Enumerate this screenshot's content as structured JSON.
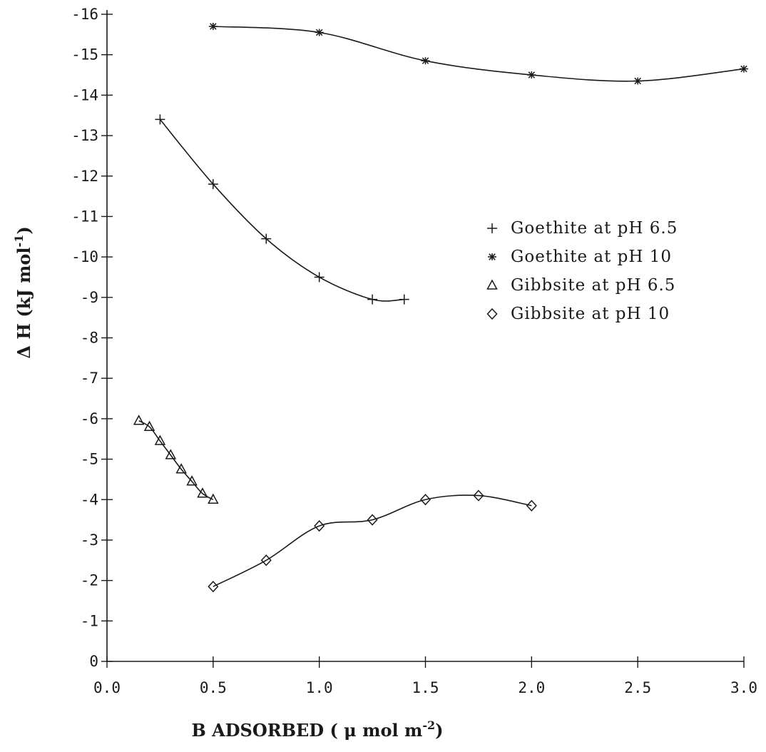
{
  "chart_data": {
    "type": "line",
    "title": "",
    "xlabel": "B ADSORBED ( μ mol m",
    "xlabel_sup": "-2",
    "xlabel_end": ")",
    "ylabel": "Δ H (kJ mol",
    "ylabel_sup": "-1",
    "ylabel_end": ")",
    "xlim": [
      0.0,
      3.0
    ],
    "ylim": [
      0,
      -16
    ],
    "x_ticks": [
      "0.0",
      "0.5",
      "1.0",
      "1.5",
      "2.0",
      "2.5",
      "3.0"
    ],
    "y_ticks": [
      "0",
      "-1",
      "-2",
      "-3",
      "-4",
      "-5",
      "-6",
      "-7",
      "-8",
      "-9",
      "-10",
      "-11",
      "-12",
      "-13",
      "-14",
      "-15",
      "-16"
    ],
    "legend_position": "right",
    "series": [
      {
        "name": "Goethite at pH 6.5",
        "marker": "plus",
        "x": [
          0.25,
          0.5,
          0.75,
          1.0,
          1.25,
          1.4
        ],
        "y": [
          -13.4,
          -11.8,
          -10.45,
          -9.5,
          -8.95,
          -8.95
        ]
      },
      {
        "name": "Goethite at pH 10",
        "marker": "asterisk",
        "x": [
          0.5,
          1.0,
          1.5,
          2.0,
          2.5,
          3.0
        ],
        "y": [
          -15.7,
          -15.55,
          -14.85,
          -14.5,
          -14.35,
          -14.65
        ]
      },
      {
        "name": "Gibbsite at pH 6.5",
        "marker": "triangle",
        "x": [
          0.15,
          0.2,
          0.25,
          0.3,
          0.35,
          0.4,
          0.45,
          0.5
        ],
        "y": [
          -5.95,
          -5.8,
          -5.45,
          -5.1,
          -4.75,
          -4.45,
          -4.15,
          -4.0
        ]
      },
      {
        "name": "Gibbsite at pH 10",
        "marker": "diamond",
        "x": [
          0.5,
          0.75,
          1.0,
          1.25,
          1.5,
          1.75,
          2.0
        ],
        "y": [
          -1.85,
          -2.5,
          -3.35,
          -3.5,
          -4.0,
          -4.1,
          -3.85
        ]
      }
    ]
  }
}
